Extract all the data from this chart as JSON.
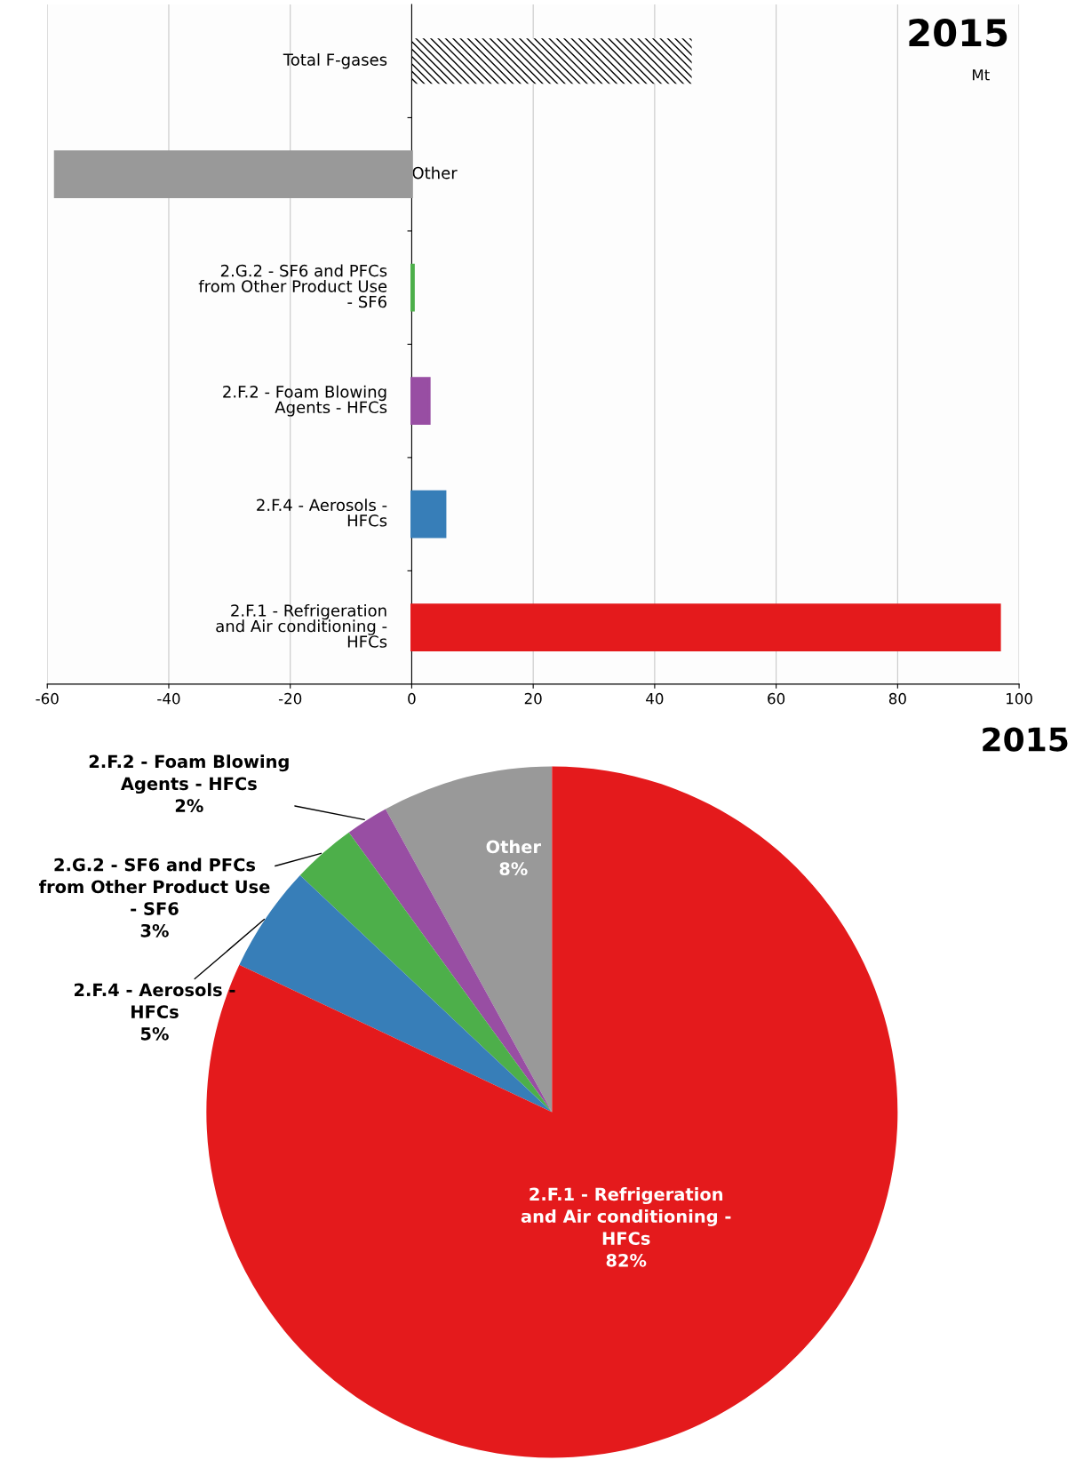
{
  "chart_data": [
    {
      "type": "bar",
      "orientation": "horizontal",
      "title": "2015",
      "subtitle": "Mt",
      "categories": [
        "Total F-gases",
        "Other",
        "2.G.2 - SF6 and PFCs from Other Product Use - SF6",
        "2.F.2 - Foam Blowing Agents - HFCs",
        "2.F.4 - Aerosols - HFCs",
        "2.F.1 - Refrigeration and Air conditioning - HFCs"
      ],
      "values": [
        46.1,
        -58.7,
        0.3,
        2.9,
        5.5,
        96.8
      ],
      "colors": [
        "#000000",
        "#999999",
        "#4daf4a",
        "#984ea3",
        "#377eb8",
        "#e41a1c"
      ],
      "xlim": [
        -60,
        100
      ],
      "xticks": [
        -60,
        -40,
        -20,
        0,
        20,
        40,
        60,
        80,
        100
      ],
      "grid": "x"
    },
    {
      "type": "pie",
      "title": "2015",
      "categories": [
        "Other",
        "2.F.2 - Foam Blowing Agents - HFCs",
        "2.G.2 - SF6 and PFCs from Other Product Use - SF6",
        "2.F.4 - Aerosols - HFCs",
        "2.F.1 - Refrigeration and Air conditioning - HFCs"
      ],
      "values": [
        8,
        2,
        3,
        5,
        82
      ],
      "value_labels": [
        "8%",
        "2%",
        "3%",
        "5%",
        "82%"
      ],
      "colors": [
        "#999999",
        "#984ea3",
        "#4daf4a",
        "#377eb8",
        "#e41a1c"
      ]
    }
  ]
}
